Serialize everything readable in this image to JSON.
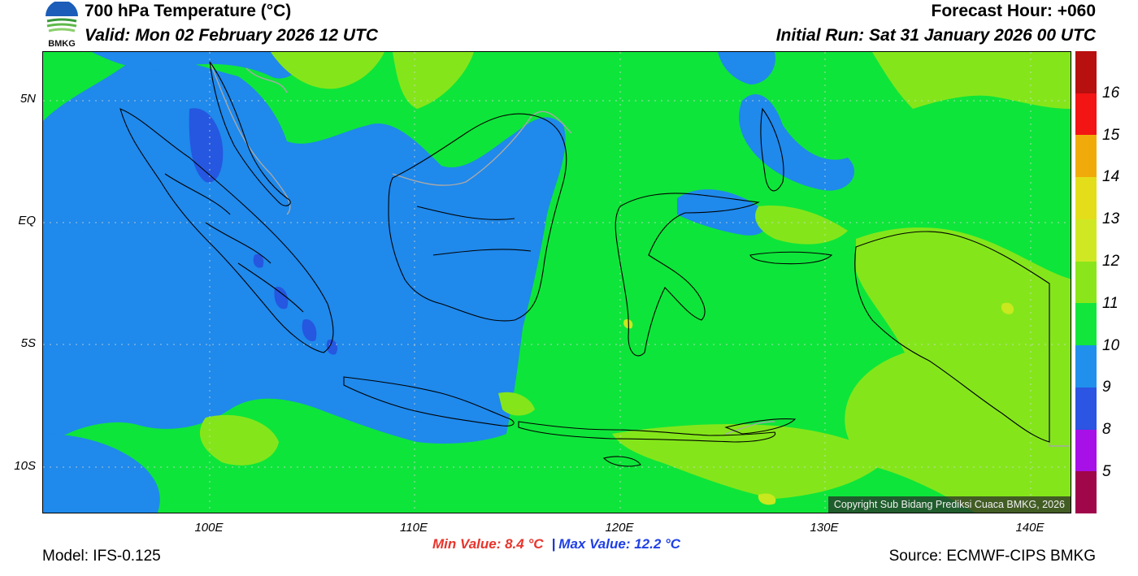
{
  "header": {
    "title": "700 hPa Temperature (°C)",
    "valid": "Valid: Mon 02 February 2026 12 UTC",
    "forecast_hour": "Forecast Hour: +060",
    "initial_run": "Initial Run: Sat 31 January 2026 00 UTC",
    "logo_text": "BMKG"
  },
  "map": {
    "lat_labels": [
      "5N",
      "EQ",
      "5S",
      "10S"
    ],
    "lon_labels": [
      "100E",
      "110E",
      "120E",
      "130E",
      "140E"
    ],
    "copyright": "Copyright Sub Bidang Prediksi Cuaca BMKG, 2026",
    "colors": {
      "t8": "#2557e0",
      "t9": "#1f89ec",
      "t10": "#0ee53a",
      "t11": "#84e61a",
      "t12": "#c9e81e",
      "coast": "#000000",
      "border": "#a8a8a8"
    }
  },
  "legend": {
    "ticks": [
      "16",
      "15",
      "14",
      "13",
      "12",
      "11",
      "10",
      "9",
      "8",
      "5"
    ],
    "colors": [
      "#b80f0f",
      "#f31414",
      "#f0ab0a",
      "#e4de1a",
      "#d0e824",
      "#8ae61a",
      "#12e63c",
      "#2090ec",
      "#2b55e2",
      "#a810e8",
      "#a0064a"
    ]
  },
  "footer": {
    "model": "Model: IFS-0.125",
    "min_value": "Min Value: 8.4 °C",
    "separator": "|",
    "max_value": "Max Value: 12.2 °C",
    "source": "Source: ECMWF-CIPS BMKG"
  }
}
